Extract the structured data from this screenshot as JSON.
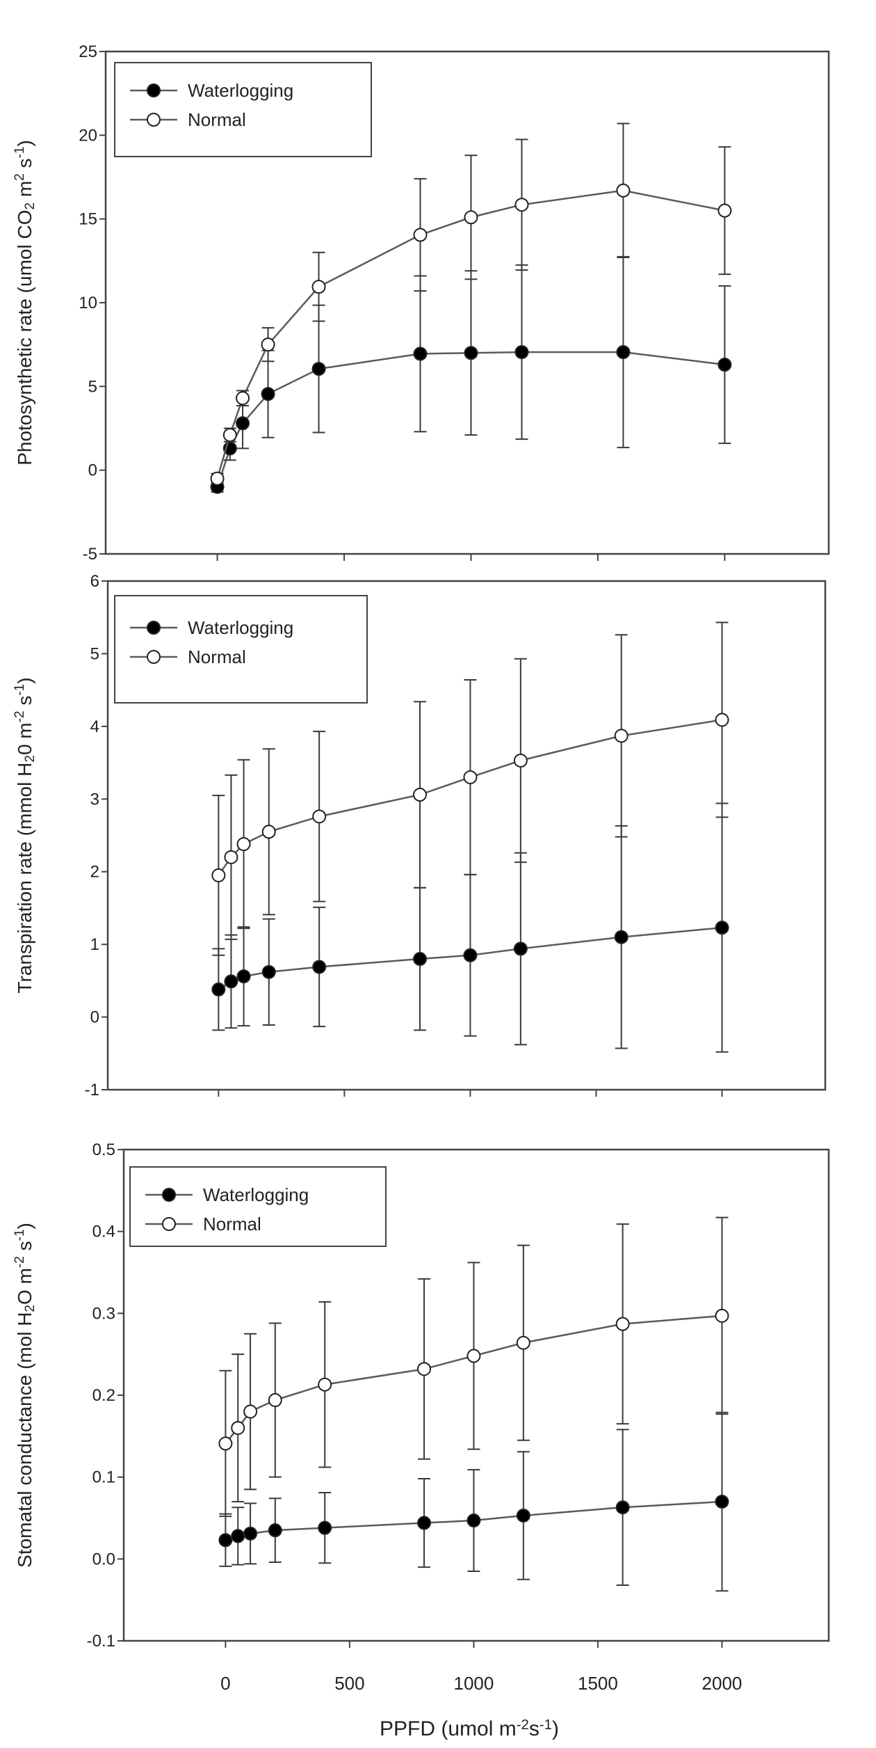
{
  "legend": {
    "waterlogging": "Waterlogging",
    "normal": "Normal"
  },
  "colors": {
    "line": "#5a5a5a",
    "errorbar": "#3a3a3a",
    "frame": "#444444",
    "filled": "#000000",
    "open": "#ffffff"
  },
  "chart_data": [
    {
      "type": "line",
      "title": "",
      "ylabel_segments": [
        {
          "t": "Photosynthetic rate (umol CO"
        },
        {
          "t": "2",
          "s": "sub"
        },
        {
          "t": " m"
        },
        {
          "t": "2",
          "s": "sup"
        },
        {
          "t": " s"
        },
        {
          "t": "-1",
          "s": "sup"
        },
        {
          "t": ")"
        }
      ],
      "xlabel": "",
      "xlim": [
        -440,
        2410
      ],
      "ylim": [
        -5,
        25
      ],
      "yticks": [
        "25",
        "20",
        "15",
        "10",
        "5",
        "0",
        "-5"
      ],
      "ytick_values": [
        25,
        20,
        15,
        10,
        5,
        0,
        -5
      ],
      "xticks": [
        0,
        500,
        1000,
        1500,
        2000
      ],
      "show_xtick_labels": false,
      "legend_position": "top-left",
      "x": [
        0,
        50,
        100,
        200,
        400,
        800,
        1000,
        1200,
        1600,
        2000
      ],
      "series": [
        {
          "name": "Waterlogging",
          "marker": "filled",
          "values": [
            -1.0,
            1.3,
            2.8,
            4.55,
            6.05,
            6.95,
            7.0,
            7.05,
            7.05,
            6.3
          ],
          "err": [
            0.3,
            0.7,
            1.5,
            2.6,
            3.8,
            4.65,
            4.9,
            5.2,
            5.7,
            4.7
          ]
        },
        {
          "name": "Normal",
          "marker": "open",
          "values": [
            -0.5,
            2.1,
            4.3,
            7.5,
            10.95,
            14.05,
            15.1,
            15.85,
            16.7,
            15.5
          ],
          "err": [
            0.3,
            0.4,
            0.45,
            1.0,
            2.05,
            3.35,
            3.7,
            3.9,
            4.0,
            3.8
          ]
        }
      ]
    },
    {
      "type": "line",
      "title": "",
      "ylabel_segments": [
        {
          "t": "Transpiration rate (mmol H"
        },
        {
          "t": "2",
          "s": "sub"
        },
        {
          "t": "0 m"
        },
        {
          "t": "-2",
          "s": "sup"
        },
        {
          "t": " s"
        },
        {
          "t": "-1",
          "s": "sup"
        },
        {
          "t": ")"
        }
      ],
      "xlabel": "",
      "xlim": [
        -440,
        2410
      ],
      "ylim": [
        -1,
        6
      ],
      "yticks": [
        "6",
        "5",
        "4",
        "3",
        "2",
        "1",
        "0",
        "-1"
      ],
      "ytick_values": [
        6,
        5,
        4,
        3,
        2,
        1,
        0,
        -1
      ],
      "xticks": [
        0,
        500,
        1000,
        1500,
        2000
      ],
      "show_xtick_labels": false,
      "legend_position": "top-left",
      "x": [
        0,
        50,
        100,
        200,
        400,
        800,
        1000,
        1200,
        1600,
        2000
      ],
      "series": [
        {
          "name": "Waterlogging",
          "marker": "filled",
          "values": [
            0.38,
            0.49,
            0.56,
            0.62,
            0.69,
            0.8,
            0.85,
            0.94,
            1.1,
            1.23
          ],
          "err": [
            0.56,
            0.64,
            0.68,
            0.73,
            0.82,
            0.98,
            1.11,
            1.32,
            1.53,
            1.71
          ]
        },
        {
          "name": "Normal",
          "marker": "open",
          "values": [
            1.95,
            2.2,
            2.38,
            2.55,
            2.76,
            3.06,
            3.3,
            3.53,
            3.87,
            4.09
          ],
          "err": [
            1.1,
            1.13,
            1.16,
            1.14,
            1.17,
            1.28,
            1.34,
            1.4,
            1.39,
            1.34
          ]
        }
      ]
    },
    {
      "type": "line",
      "title": "",
      "ylabel_segments": [
        {
          "t": "Stomatal conductance (mol H"
        },
        {
          "t": "2",
          "s": "sub"
        },
        {
          "t": "O m"
        },
        {
          "t": "-2",
          "s": "sup"
        },
        {
          "t": " s"
        },
        {
          "t": "-1",
          "s": "sup"
        },
        {
          "t": ")"
        }
      ],
      "xlabel_segments": [
        {
          "t": "PPFD (umol m"
        },
        {
          "t": "-2",
          "s": "sup"
        },
        {
          "t": "s"
        },
        {
          "t": "-1",
          "s": "sup"
        },
        {
          "t": ")"
        }
      ],
      "xlim": [
        -410,
        2430
      ],
      "ylim": [
        -0.1,
        0.5
      ],
      "yticks": [
        "0.5",
        "0.4",
        "0.3",
        "0.2",
        "0.1",
        "0.0",
        "-0.1"
      ],
      "ytick_values": [
        0.5,
        0.4,
        0.3,
        0.2,
        0.1,
        0.0,
        -0.1
      ],
      "xticks": [
        0,
        500,
        1000,
        1500,
        2000
      ],
      "xtick_labels": [
        "0",
        "500",
        "1000",
        "1500",
        "2000"
      ],
      "show_xtick_labels": true,
      "legend_position": "top-left",
      "x": [
        0,
        50,
        100,
        200,
        400,
        800,
        1000,
        1200,
        1600,
        2000
      ],
      "series": [
        {
          "name": "Waterlogging",
          "marker": "filled",
          "values": [
            0.023,
            0.028,
            0.031,
            0.035,
            0.038,
            0.044,
            0.047,
            0.053,
            0.063,
            0.07
          ],
          "err": [
            0.032,
            0.035,
            0.037,
            0.039,
            0.043,
            0.054,
            0.062,
            0.078,
            0.095,
            0.109
          ]
        },
        {
          "name": "Normal",
          "marker": "open",
          "values": [
            0.141,
            0.16,
            0.18,
            0.194,
            0.213,
            0.232,
            0.248,
            0.264,
            0.287,
            0.297
          ],
          "err": [
            0.089,
            0.09,
            0.095,
            0.094,
            0.101,
            0.11,
            0.114,
            0.119,
            0.122,
            0.12
          ]
        }
      ]
    }
  ]
}
